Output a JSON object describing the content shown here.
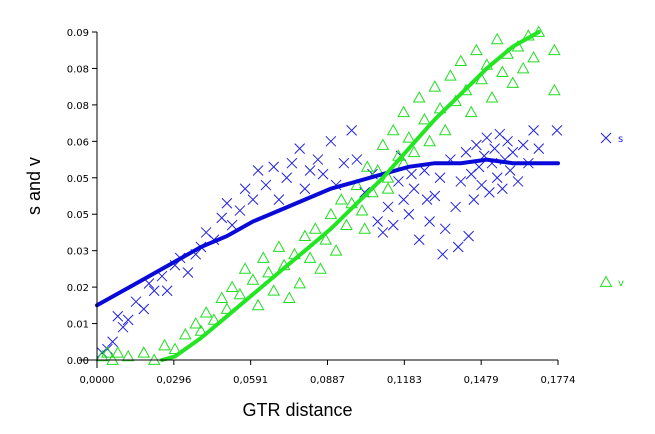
{
  "chart_data": {
    "type": "scatter",
    "xlabel": "GTR distance",
    "ylabel": "s and v",
    "xlim": [
      0,
      0.1774
    ],
    "ylim": [
      0,
      0.09
    ],
    "x_ticks": [
      "0,0000",
      "0,0296",
      "0,0591",
      "0,0887",
      "0,1183",
      "0,1479",
      "0,1774"
    ],
    "y_ticks": [
      "0.00",
      "0.01",
      "0.02",
      "0.03",
      "0.05",
      "0.05",
      "0.06",
      "0.08",
      "0.08",
      "0.09"
    ],
    "legend_position": "right",
    "series": [
      {
        "name": "s",
        "marker": "x",
        "color": "#2222dd",
        "curve_color": "#0a0ad8",
        "points": [
          [
            0.002,
            0.002
          ],
          [
            0.004,
            0.003
          ],
          [
            0.006,
            0.005
          ],
          [
            0.008,
            0.012
          ],
          [
            0.01,
            0.009
          ],
          [
            0.012,
            0.011
          ],
          [
            0.015,
            0.016
          ],
          [
            0.018,
            0.014
          ],
          [
            0.02,
            0.021
          ],
          [
            0.022,
            0.019
          ],
          [
            0.025,
            0.023
          ],
          [
            0.027,
            0.019
          ],
          [
            0.03,
            0.026
          ],
          [
            0.032,
            0.028
          ],
          [
            0.035,
            0.024
          ],
          [
            0.038,
            0.029
          ],
          [
            0.04,
            0.031
          ],
          [
            0.042,
            0.035
          ],
          [
            0.045,
            0.033
          ],
          [
            0.048,
            0.039
          ],
          [
            0.05,
            0.043
          ],
          [
            0.052,
            0.037
          ],
          [
            0.055,
            0.041
          ],
          [
            0.057,
            0.047
          ],
          [
            0.06,
            0.044
          ],
          [
            0.062,
            0.052
          ],
          [
            0.065,
            0.048
          ],
          [
            0.068,
            0.053
          ],
          [
            0.07,
            0.044
          ],
          [
            0.073,
            0.05
          ],
          [
            0.075,
            0.054
          ],
          [
            0.078,
            0.058
          ],
          [
            0.08,
            0.047
          ],
          [
            0.082,
            0.052
          ],
          [
            0.085,
            0.055
          ],
          [
            0.087,
            0.051
          ],
          [
            0.09,
            0.06
          ],
          [
            0.092,
            0.048
          ],
          [
            0.095,
            0.054
          ],
          [
            0.098,
            0.063
          ],
          [
            0.1,
            0.055
          ],
          [
            0.103,
            0.046
          ],
          [
            0.106,
            0.051
          ],
          [
            0.108,
            0.038
          ],
          [
            0.11,
            0.035
          ],
          [
            0.112,
            0.042
          ],
          [
            0.114,
            0.037
          ],
          [
            0.116,
            0.049
          ],
          [
            0.118,
            0.044
          ],
          [
            0.12,
            0.04
          ],
          [
            0.122,
            0.047
          ],
          [
            0.124,
            0.033
          ],
          [
            0.126,
            0.052
          ],
          [
            0.128,
            0.038
          ],
          [
            0.13,
            0.045
          ],
          [
            0.132,
            0.05
          ],
          [
            0.134,
            0.036
          ],
          [
            0.136,
            0.055
          ],
          [
            0.138,
            0.042
          ],
          [
            0.14,
            0.049
          ],
          [
            0.142,
            0.057
          ],
          [
            0.144,
            0.051
          ],
          [
            0.145,
            0.044
          ],
          [
            0.146,
            0.059
          ],
          [
            0.147,
            0.053
          ],
          [
            0.148,
            0.048
          ],
          [
            0.149,
            0.056
          ],
          [
            0.15,
            0.061
          ],
          [
            0.151,
            0.046
          ],
          [
            0.152,
            0.054
          ],
          [
            0.153,
            0.058
          ],
          [
            0.154,
            0.05
          ],
          [
            0.155,
            0.062
          ],
          [
            0.156,
            0.047
          ],
          [
            0.157,
            0.055
          ],
          [
            0.158,
            0.06
          ],
          [
            0.159,
            0.052
          ],
          [
            0.16,
            0.057
          ],
          [
            0.162,
            0.049
          ],
          [
            0.164,
            0.059
          ],
          [
            0.166,
            0.054
          ],
          [
            0.168,
            0.063
          ],
          [
            0.17,
            0.058
          ],
          [
            0.177,
            0.063
          ],
          [
            0.143,
            0.034
          ],
          [
            0.139,
            0.031
          ],
          [
            0.133,
            0.029
          ],
          [
            0.127,
            0.044
          ],
          [
            0.121,
            0.051
          ],
          [
            0.117,
            0.056
          ]
        ],
        "curve": [
          [
            0.0,
            0.015
          ],
          [
            0.01,
            0.019
          ],
          [
            0.02,
            0.023
          ],
          [
            0.03,
            0.027
          ],
          [
            0.04,
            0.031
          ],
          [
            0.05,
            0.034
          ],
          [
            0.06,
            0.038
          ],
          [
            0.07,
            0.041
          ],
          [
            0.08,
            0.044
          ],
          [
            0.09,
            0.047
          ],
          [
            0.1,
            0.049
          ],
          [
            0.11,
            0.051
          ],
          [
            0.12,
            0.053
          ],
          [
            0.13,
            0.054
          ],
          [
            0.14,
            0.054
          ],
          [
            0.15,
            0.055
          ],
          [
            0.16,
            0.054
          ],
          [
            0.17,
            0.054
          ],
          [
            0.1774,
            0.054
          ]
        ]
      },
      {
        "name": "v",
        "marker": "triangle",
        "color": "#22dd22",
        "curve_color": "#22e622",
        "points": [
          [
            0.002,
            0.001
          ],
          [
            0.004,
            0.002
          ],
          [
            0.006,
            0.0
          ],
          [
            0.008,
            0.002
          ],
          [
            0.012,
            0.001
          ],
          [
            0.018,
            0.002
          ],
          [
            0.022,
            0.0
          ],
          [
            0.026,
            0.004
          ],
          [
            0.03,
            0.003
          ],
          [
            0.034,
            0.007
          ],
          [
            0.038,
            0.01
          ],
          [
            0.04,
            0.008
          ],
          [
            0.042,
            0.013
          ],
          [
            0.045,
            0.011
          ],
          [
            0.048,
            0.017
          ],
          [
            0.05,
            0.014
          ],
          [
            0.052,
            0.02
          ],
          [
            0.055,
            0.018
          ],
          [
            0.057,
            0.025
          ],
          [
            0.06,
            0.022
          ],
          [
            0.062,
            0.015
          ],
          [
            0.064,
            0.028
          ],
          [
            0.066,
            0.024
          ],
          [
            0.068,
            0.019
          ],
          [
            0.07,
            0.031
          ],
          [
            0.072,
            0.026
          ],
          [
            0.074,
            0.017
          ],
          [
            0.076,
            0.029
          ],
          [
            0.078,
            0.021
          ],
          [
            0.08,
            0.034
          ],
          [
            0.082,
            0.028
          ],
          [
            0.084,
            0.036
          ],
          [
            0.086,
            0.025
          ],
          [
            0.088,
            0.033
          ],
          [
            0.09,
            0.04
          ],
          [
            0.092,
            0.03
          ],
          [
            0.094,
            0.044
          ],
          [
            0.096,
            0.037
          ],
          [
            0.098,
            0.043
          ],
          [
            0.1,
            0.048
          ],
          [
            0.102,
            0.041
          ],
          [
            0.104,
            0.053
          ],
          [
            0.106,
            0.046
          ],
          [
            0.108,
            0.052
          ],
          [
            0.11,
            0.059
          ],
          [
            0.112,
            0.05
          ],
          [
            0.114,
            0.063
          ],
          [
            0.116,
            0.056
          ],
          [
            0.118,
            0.068
          ],
          [
            0.12,
            0.061
          ],
          [
            0.122,
            0.057
          ],
          [
            0.124,
            0.072
          ],
          [
            0.126,
            0.066
          ],
          [
            0.128,
            0.06
          ],
          [
            0.13,
            0.075
          ],
          [
            0.132,
            0.069
          ],
          [
            0.134,
            0.063
          ],
          [
            0.136,
            0.078
          ],
          [
            0.138,
            0.071
          ],
          [
            0.14,
            0.082
          ],
          [
            0.142,
            0.074
          ],
          [
            0.144,
            0.068
          ],
          [
            0.146,
            0.085
          ],
          [
            0.148,
            0.077
          ],
          [
            0.15,
            0.081
          ],
          [
            0.152,
            0.072
          ],
          [
            0.154,
            0.088
          ],
          [
            0.156,
            0.079
          ],
          [
            0.158,
            0.084
          ],
          [
            0.16,
            0.076
          ],
          [
            0.162,
            0.086
          ],
          [
            0.164,
            0.08
          ],
          [
            0.166,
            0.089
          ],
          [
            0.168,
            0.083
          ],
          [
            0.17,
            0.09
          ],
          [
            0.176,
            0.085
          ],
          [
            0.176,
            0.074
          ],
          [
            0.118,
            0.054
          ],
          [
            0.112,
            0.047
          ],
          [
            0.103,
            0.036
          ]
        ],
        "curve": [
          [
            0.025,
            0.0
          ],
          [
            0.03,
            0.001
          ],
          [
            0.04,
            0.006
          ],
          [
            0.05,
            0.012
          ],
          [
            0.06,
            0.018
          ],
          [
            0.07,
            0.024
          ],
          [
            0.08,
            0.03
          ],
          [
            0.09,
            0.036
          ],
          [
            0.1,
            0.043
          ],
          [
            0.11,
            0.05
          ],
          [
            0.12,
            0.058
          ],
          [
            0.13,
            0.066
          ],
          [
            0.14,
            0.073
          ],
          [
            0.15,
            0.08
          ],
          [
            0.16,
            0.086
          ],
          [
            0.17,
            0.09
          ]
        ]
      }
    ]
  }
}
